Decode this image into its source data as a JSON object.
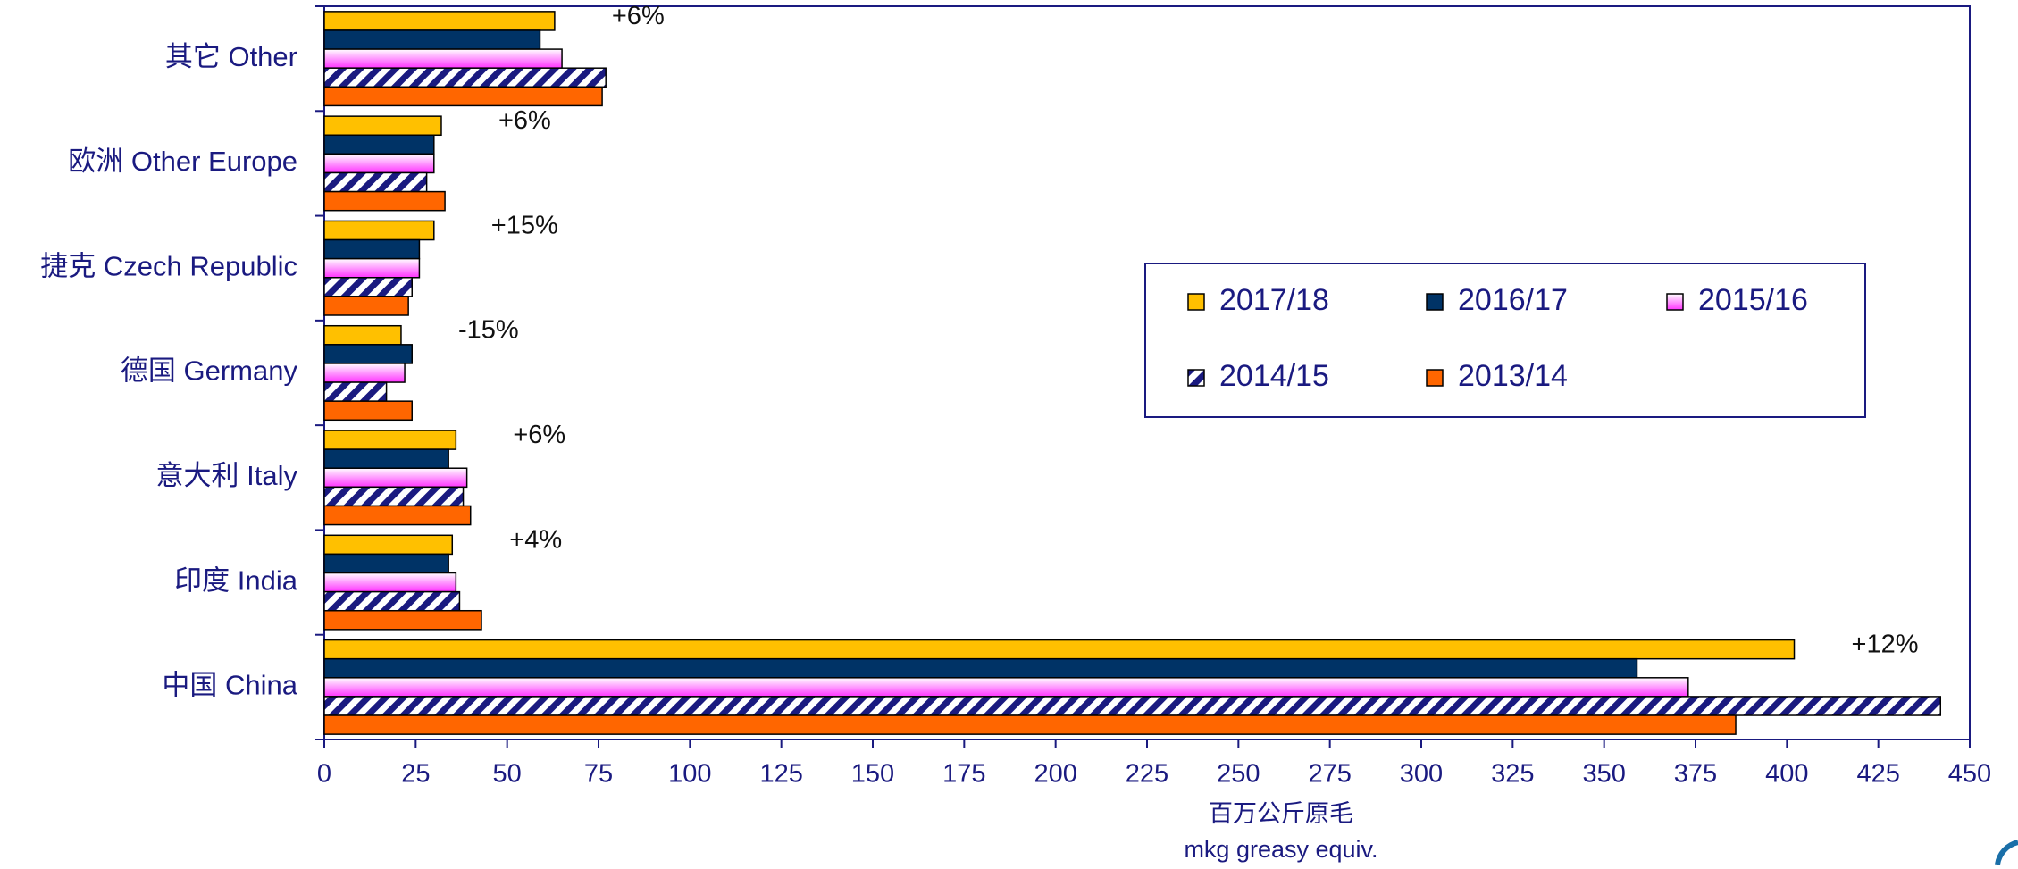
{
  "chart_data": {
    "type": "hbar",
    "categories": [
      "其它 Other",
      "欧洲 Other Europe",
      "捷克 Czech Republic",
      "德国 Germany",
      "意大利 Italy",
      "印度 India",
      "中国 China"
    ],
    "series": [
      {
        "name": "2017/18",
        "color": "#ffc000",
        "fill": "solid",
        "values": [
          63,
          32,
          30,
          21,
          36,
          35,
          402
        ]
      },
      {
        "name": "2016/17",
        "color": "#003366",
        "fill": "solid",
        "values": [
          59,
          30,
          26,
          24,
          34,
          34,
          359
        ]
      },
      {
        "name": "2015/16",
        "color": "#ff55ff",
        "fill": "gradient",
        "values": [
          65,
          30,
          26,
          22,
          39,
          36,
          373
        ]
      },
      {
        "name": "2014/15",
        "color": "#1a1a80",
        "fill": "hatch",
        "values": [
          77,
          28,
          24,
          17,
          38,
          37,
          442
        ]
      },
      {
        "name": "2013/14",
        "color": "#ff6600",
        "fill": "solid",
        "values": [
          76,
          33,
          23,
          24,
          40,
          43,
          386
        ]
      }
    ],
    "annotations": [
      "+6%",
      "+6%",
      "+15%",
      "-15%",
      "+6%",
      "+4%",
      "+12%"
    ],
    "xlabel": [
      "百万公斤原毛",
      "mkg greasy equiv."
    ],
    "xlim": [
      0,
      450
    ],
    "xticks": [
      0,
      25,
      50,
      75,
      100,
      125,
      150,
      175,
      200,
      225,
      250,
      275,
      300,
      325,
      350,
      375,
      400,
      425,
      450
    ],
    "grid": false
  }
}
